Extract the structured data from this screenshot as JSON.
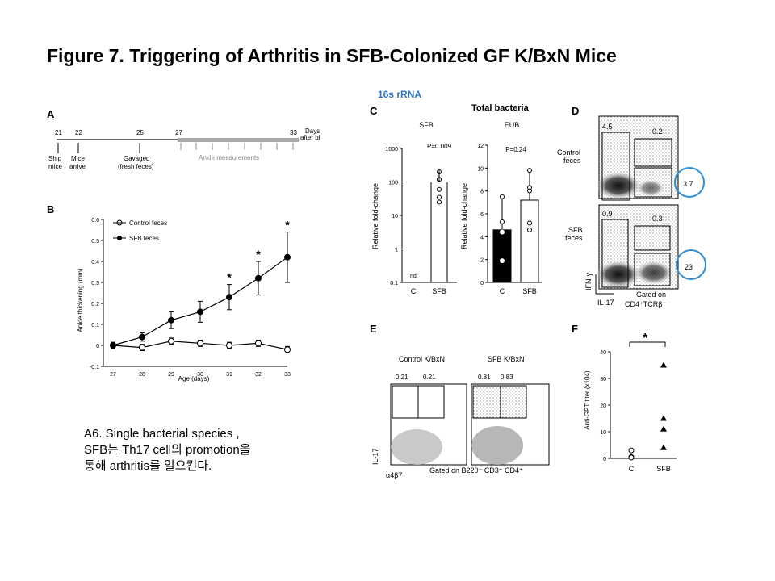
{
  "slide": {
    "title": "Figure 7. Triggering of Arthritis in SFB-Colonized GF K/BxN Mice",
    "label_16s": "16s rRNA",
    "label_total_bacteria": "Total bacteria",
    "caption_lines": [
      "A6. Single bacterial species ,",
      "SFB는 Th17 cell의 promotion을",
      "통해 arthritis를 일으킨다."
    ]
  },
  "panel_a": {
    "letter": "A",
    "days": [
      "21",
      "22",
      "25",
      "27",
      "33"
    ],
    "days_label": [
      "Days",
      "after birth"
    ],
    "events": [
      [
        "Ship",
        "mice"
      ],
      [
        "Mice",
        "arrive"
      ],
      [
        "Gavaged",
        "(fresh feces)"
      ]
    ],
    "measure_label": "Ankle measurements"
  },
  "panel_b": {
    "letter": "B",
    "legend": [
      "Control feces",
      "SFB feces"
    ],
    "star": "*"
  },
  "panel_c": {
    "letter": "C",
    "left_title": "SFB",
    "left_p": "P=0.009",
    "right_title": "EUB",
    "right_p": "P=0.24",
    "nd": "nd",
    "log_ticks": [
      "1000",
      "100",
      "10",
      "1",
      "0.1"
    ],
    "lin_ticks": [
      "12",
      "10",
      "8",
      "6",
      "4",
      "2",
      "0"
    ]
  },
  "panel_d": {
    "letter": "D",
    "row_labels": [
      [
        "Control",
        "feces"
      ],
      [
        "SFB",
        "feces"
      ]
    ],
    "values_top": [
      "4.5",
      "0.2",
      "3.7"
    ],
    "values_bottom": [
      "0.9",
      "0.3",
      "23"
    ],
    "y_axis": "IFN-γ",
    "x_axis": "IL-17",
    "gated": [
      "Gated on",
      "CD4⁺TCRβ⁺"
    ]
  },
  "panel_e": {
    "letter": "E",
    "titles": [
      "Control K/BxN",
      "SFB K/BxN"
    ],
    "values": [
      "0.21",
      "0.21",
      "0.81",
      "0.83"
    ],
    "y_axis": "IL-17",
    "x_axis": "α4β7",
    "gated": "Gated on B220⁻ CD3⁺ CD4⁺"
  },
  "panel_f": {
    "letter": "F",
    "star": "*",
    "y_ticks": [
      "40",
      "30",
      "20",
      "10",
      "0"
    ]
  },
  "chart_data": [
    {
      "type": "line",
      "panel": "B",
      "xlabel": "Age (days)",
      "ylabel": "Ankle thickening (mm)",
      "x": [
        27,
        28,
        29,
        30,
        31,
        32,
        33
      ],
      "ylim": [
        -0.1,
        0.6
      ],
      "yticks": [
        -0.1,
        0,
        0.1,
        0.2,
        0.3,
        0.4,
        0.5,
        0.6
      ],
      "series": [
        {
          "name": "Control feces",
          "values": [
            0,
            -0.01,
            0.02,
            0.01,
            0.0,
            0.01,
            -0.02
          ]
        },
        {
          "name": "SFB feces",
          "values": [
            0,
            0.04,
            0.12,
            0.16,
            0.23,
            0.32,
            0.42
          ]
        }
      ],
      "significant_at": [
        31,
        32,
        33
      ]
    },
    {
      "type": "bar",
      "panel": "C-left",
      "title": "SFB",
      "ylabel": "Relative fold-change",
      "scale": "log",
      "categories": [
        "C",
        "SFB"
      ],
      "values": [
        null,
        100
      ],
      "points": {
        "SFB": [
          200,
          120,
          60,
          35,
          25
        ]
      },
      "ylim": [
        0.1,
        1000
      ]
    },
    {
      "type": "bar",
      "panel": "C-right",
      "title": "EUB",
      "ylabel": "Relative fold-change",
      "categories": [
        "C",
        "SFB"
      ],
      "values": [
        4.6,
        7.2
      ],
      "points": {
        "C": [
          7.5,
          5.3,
          4.4,
          1.9
        ],
        "SFB": [
          9.8,
          8.3,
          8.0,
          5.2,
          4.6
        ]
      },
      "ylim": [
        0,
        12
      ]
    },
    {
      "type": "scatter",
      "panel": "F",
      "ylabel": "Anti-GPT titer (x104)",
      "categories": [
        "C",
        "SFB"
      ],
      "points": {
        "C": [
          3,
          0.5,
          0.3
        ],
        "SFB": [
          35,
          15,
          11,
          4
        ]
      },
      "ylim": [
        0,
        40
      ]
    }
  ],
  "colors": {
    "highlight_circle": "#2b8fd8",
    "label_blue": "#2b74c7"
  }
}
